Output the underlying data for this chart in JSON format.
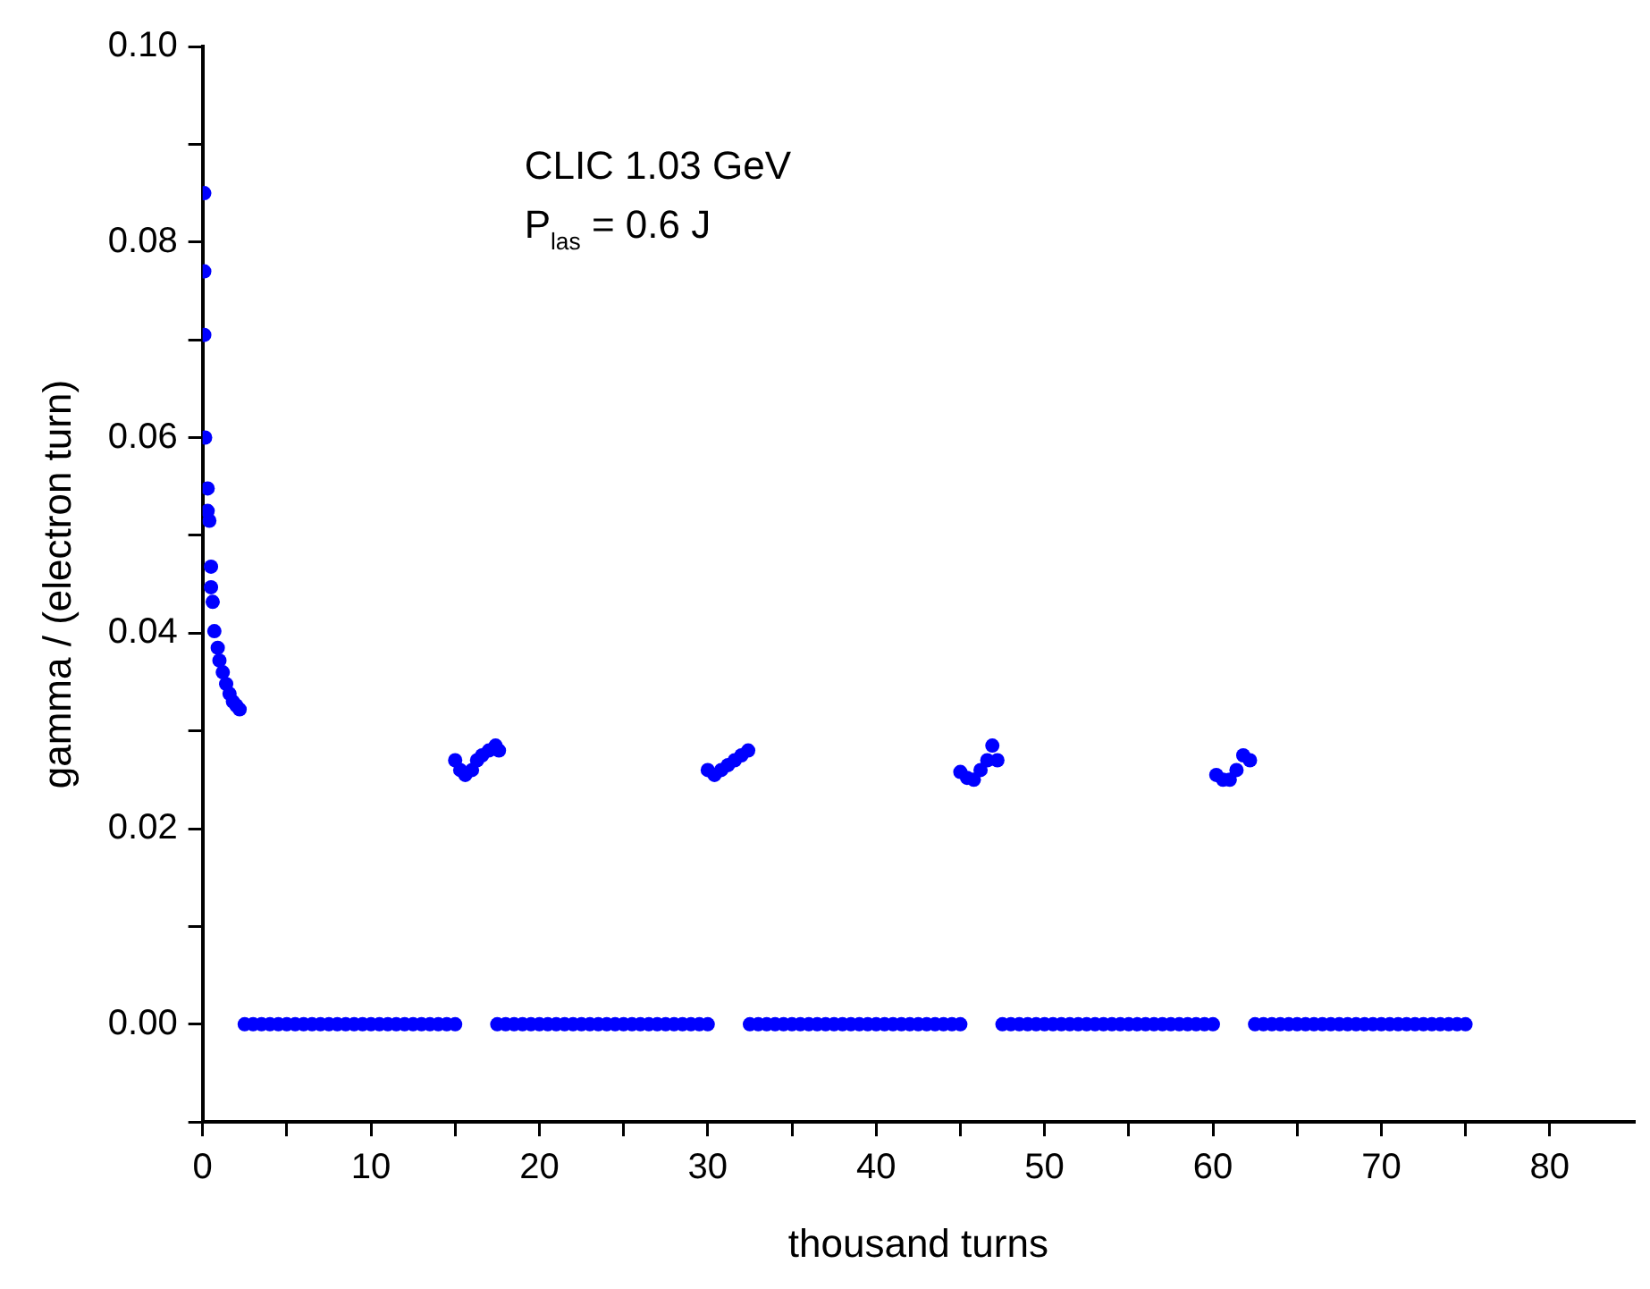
{
  "chart_data": {
    "type": "scatter",
    "xlabel": "thousand turns",
    "ylabel": "gamma / (electron turn)",
    "annotations": [
      "CLIC 1.03 GeV",
      "P$_{las}$ = 0.6 J"
    ],
    "xlim": [
      0,
      85
    ],
    "ylim": [
      -0.01,
      0.1
    ],
    "xticks": [
      0,
      {
        "value": 5,
        "label": null
      },
      10,
      {
        "value": 15,
        "label": null
      },
      20,
      {
        "value": 25,
        "label": null
      },
      30,
      {
        "value": 35,
        "label": null
      },
      40,
      {
        "value": 45,
        "label": null
      },
      50,
      {
        "value": 55,
        "label": null
      },
      60,
      {
        "value": 65,
        "label": null
      },
      70,
      {
        "value": 75,
        "label": null
      },
      80
    ],
    "yticks": [
      {
        "value": -0.01,
        "label": null
      },
      {
        "value": 0,
        "label": "0.00"
      },
      {
        "value": 0.01,
        "label": null
      },
      {
        "value": 0.02,
        "label": "0.02"
      },
      {
        "value": 0.03,
        "label": null
      },
      {
        "value": 0.04,
        "label": "0.04"
      },
      {
        "value": 0.05,
        "label": null
      },
      {
        "value": 0.06,
        "label": "0.06"
      },
      {
        "value": 0.07,
        "label": null
      },
      {
        "value": 0.08,
        "label": "0.08"
      },
      {
        "value": 0.09,
        "label": null
      },
      {
        "value": 0.1,
        "label": "0.10"
      }
    ],
    "grid": false,
    "legend": false,
    "marker": "circle",
    "series": [
      {
        "color": "#0000ff",
        "x": [
          0.1,
          0.1,
          0.1,
          0.15,
          0.3,
          0.3,
          0.4,
          0.5,
          0.5,
          0.6,
          0.7,
          0.9,
          1.0,
          1.2,
          1.4,
          1.6,
          1.8,
          2.0,
          2.2,
          15,
          15.3,
          15.6,
          16,
          16.3,
          16.6,
          17,
          17.4,
          17.6,
          30,
          30.4,
          30.8,
          31.2,
          31.6,
          32,
          32.4,
          45,
          45.4,
          45.8,
          46.2,
          46.6,
          46.9,
          47.2,
          60.2,
          60.6,
          61,
          61.4,
          61.8,
          62.2,
          2.5,
          3,
          3.5,
          4,
          4.5,
          5,
          5.5,
          6,
          6.5,
          7,
          7.5,
          8,
          8.5,
          9,
          9.5,
          10,
          10.5,
          11,
          11.5,
          12,
          12.5,
          13,
          13.5,
          14,
          14.5,
          15,
          17.5,
          18,
          18.5,
          19,
          19.5,
          20,
          20.5,
          21,
          21.5,
          22,
          22.5,
          23,
          23.5,
          24,
          24.5,
          25,
          25.5,
          26,
          26.5,
          27,
          27.5,
          28,
          28.5,
          29,
          29.5,
          30,
          32.5,
          33,
          33.5,
          34,
          34.5,
          35,
          35.5,
          36,
          36.5,
          37,
          37.5,
          38,
          38.5,
          39,
          39.5,
          40,
          40.5,
          41,
          41.5,
          42,
          42.5,
          43,
          43.5,
          44,
          44.5,
          45,
          47.5,
          48,
          48.5,
          49,
          49.5,
          50,
          50.5,
          51,
          51.5,
          52,
          52.5,
          53,
          53.5,
          54,
          54.5,
          55,
          55.5,
          56,
          56.5,
          57,
          57.5,
          58,
          58.5,
          59,
          59.5,
          60,
          62.5,
          63,
          63.5,
          64,
          64.5,
          65,
          65.5,
          66,
          66.5,
          67,
          67.5,
          68,
          68.5,
          69,
          69.5,
          70,
          70.5,
          71,
          71.5,
          72,
          72.5,
          73,
          73.5,
          74,
          74.5,
          75
        ],
        "values": [
          0.085,
          0.077,
          0.0705,
          0.06,
          0.0548,
          0.0525,
          0.0515,
          0.0468,
          0.0447,
          0.0432,
          0.0402,
          0.0385,
          0.0372,
          0.036,
          0.0348,
          0.0338,
          0.033,
          0.0326,
          0.0322,
          0.027,
          0.026,
          0.0255,
          0.026,
          0.027,
          0.0275,
          0.028,
          0.0285,
          0.028,
          0.026,
          0.0255,
          0.026,
          0.0265,
          0.027,
          0.0275,
          0.028,
          0.0258,
          0.0252,
          0.025,
          0.026,
          0.027,
          0.0285,
          0.027,
          0.0255,
          0.025,
          0.025,
          0.026,
          0.0275,
          0.027,
          0,
          0,
          0,
          0,
          0,
          0,
          0,
          0,
          0,
          0,
          0,
          0,
          0,
          0,
          0,
          0,
          0,
          0,
          0,
          0,
          0,
          0,
          0,
          0,
          0,
          0,
          0,
          0,
          0,
          0,
          0,
          0,
          0,
          0,
          0,
          0,
          0,
          0,
          0,
          0,
          0,
          0,
          0,
          0,
          0,
          0,
          0,
          0,
          0,
          0,
          0,
          0,
          0,
          0,
          0,
          0,
          0,
          0,
          0,
          0,
          0,
          0,
          0,
          0,
          0,
          0,
          0,
          0,
          0,
          0,
          0,
          0,
          0,
          0,
          0,
          0,
          0,
          0,
          0,
          0,
          0,
          0,
          0,
          0,
          0,
          0,
          0,
          0,
          0,
          0,
          0,
          0,
          0,
          0,
          0,
          0,
          0,
          0,
          0,
          0,
          0,
          0,
          0,
          0,
          0,
          0,
          0,
          0,
          0,
          0,
          0,
          0,
          0,
          0,
          0,
          0,
          0,
          0,
          0,
          0,
          0,
          0,
          0,
          0,
          0,
          0,
          0,
          0,
          0,
          0
        ]
      }
    ]
  }
}
